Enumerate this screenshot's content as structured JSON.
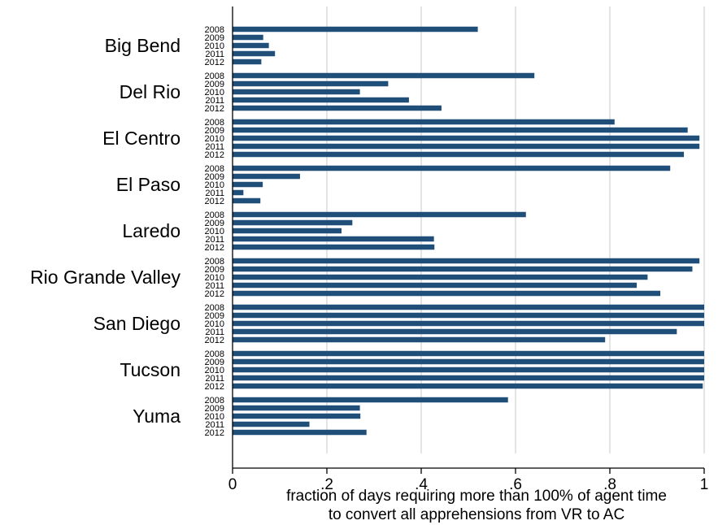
{
  "chart_data": {
    "type": "bar",
    "orientation": "horizontal",
    "xlabel_lines": [
      "fraction of days requiring more than 100% of agent time",
      "to convert all apprehensions from VR to AC"
    ],
    "xlim": [
      0,
      1
    ],
    "xticks": [
      0,
      0.2,
      0.4,
      0.6,
      0.8,
      1
    ],
    "xtick_labels": [
      "0",
      ".2",
      ".4",
      ".6",
      ".8",
      "1"
    ],
    "grid": "vertical",
    "bar_color": "#1f4e79",
    "years": [
      "2008",
      "2009",
      "2010",
      "2011",
      "2012"
    ],
    "groups": [
      {
        "name": "Big Bend",
        "values": [
          0.52,
          0.065,
          0.077,
          0.09,
          0.061
        ]
      },
      {
        "name": "Del Rio",
        "values": [
          0.64,
          0.33,
          0.27,
          0.374,
          0.443
        ]
      },
      {
        "name": "El Centro",
        "values": [
          0.81,
          0.965,
          0.99,
          0.99,
          0.957
        ]
      },
      {
        "name": "El Paso",
        "values": [
          0.928,
          0.143,
          0.064,
          0.023,
          0.059
        ]
      },
      {
        "name": "Laredo",
        "values": [
          0.622,
          0.254,
          0.231,
          0.427,
          0.428
        ]
      },
      {
        "name": "Rio Grande Valley",
        "values": [
          0.99,
          0.975,
          0.88,
          0.857,
          0.907
        ]
      },
      {
        "name": "San Diego",
        "values": [
          1.0,
          1.0,
          1.0,
          0.942,
          0.79
        ]
      },
      {
        "name": "Tucson",
        "values": [
          1.0,
          1.0,
          1.0,
          1.0,
          0.997
        ]
      },
      {
        "name": "Yuma",
        "values": [
          0.584,
          0.27,
          0.271,
          0.163,
          0.284
        ]
      }
    ]
  }
}
